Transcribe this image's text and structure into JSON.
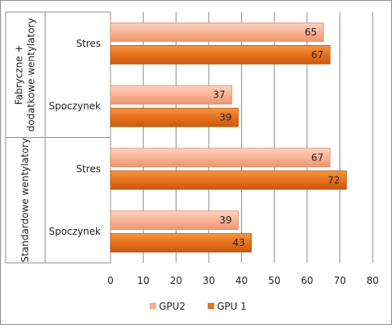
{
  "chart_data": {
    "type": "bar",
    "orientation": "horizontal",
    "xlim": [
      0,
      80
    ],
    "x_ticks": [
      0,
      10,
      20,
      30,
      40,
      50,
      60,
      70,
      80
    ],
    "grid": true,
    "legend_position": "bottom",
    "groups": [
      {
        "label": "Fabryczne + dodatkowe wentylatory",
        "categories": [
          "Stres",
          "Spoczynek"
        ]
      },
      {
        "label": "Standardowe wentylatory",
        "categories": [
          "Stres",
          "Spoczynek"
        ]
      }
    ],
    "series": [
      {
        "name": "GPU2",
        "color": "#F9B294",
        "values": [
          65,
          37,
          67,
          39
        ]
      },
      {
        "name": "GPU 1",
        "color": "#E8701C",
        "values": [
          67,
          39,
          72,
          43
        ]
      }
    ]
  }
}
